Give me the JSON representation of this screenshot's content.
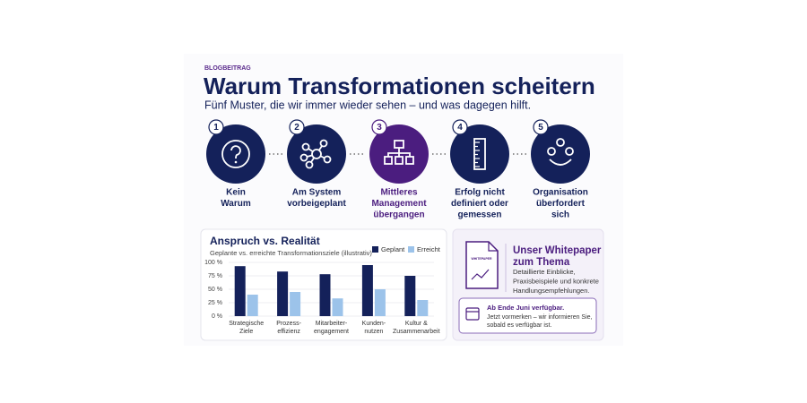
{
  "header": {
    "kicker": "BLOGBEITRAG",
    "title": "Warum Transformationen scheitern",
    "subtitle": "Fünf Muster, die wir immer wieder sehen – und was dagegen hilft."
  },
  "steps": [
    {
      "number": "1",
      "label": [
        "Kein",
        "Warum"
      ]
    },
    {
      "number": "2",
      "label": [
        "Am System",
        "vorbeigeplant"
      ]
    },
    {
      "number": "3",
      "label": [
        "Mittleres",
        "Management",
        "übergangen"
      ]
    },
    {
      "number": "4",
      "label": [
        "Erfolg nicht",
        "definiert oder",
        "gemessen"
      ]
    },
    {
      "number": "5",
      "label": [
        "Organisation",
        "überfordert",
        "sich"
      ]
    }
  ],
  "chart_data": {
    "type": "bar",
    "title": "Anspruch vs. Realität",
    "subtitle": "Geplante vs. erreichte Transformationsziele (illustrativ)",
    "categories": [
      [
        "Strategische",
        "Ziele"
      ],
      [
        "Prozess-",
        "effizienz"
      ],
      [
        "Mitarbeiter-",
        "engagement"
      ],
      [
        "Kunden-",
        "nutzen"
      ],
      [
        "Kultur &",
        "Zusammenarbeit"
      ]
    ],
    "series": [
      {
        "name": "Geplant",
        "color": "#14215a",
        "values": [
          93,
          83,
          78,
          95,
          75
        ]
      },
      {
        "name": "Erreicht",
        "color": "#9cc3ea",
        "values": [
          40,
          45,
          33,
          50,
          30
        ]
      }
    ],
    "ylim": [
      0,
      100
    ],
    "yticks": [
      {
        "value": 0,
        "label": "0 %"
      },
      {
        "value": 25,
        "label": "25 %"
      },
      {
        "value": 50,
        "label": "50 %"
      },
      {
        "value": 75,
        "label": "75 %"
      },
      {
        "value": 100,
        "label": "100 %"
      }
    ],
    "legend": "top-right"
  },
  "whitepaper": {
    "icon_label": "WHITEPAPER",
    "title": [
      "Unser Whitepaper",
      "zum Thema"
    ],
    "text": [
      "Detaillierte Einblicke,",
      "Praxisbeispiele und konkrete",
      "Handlungsempfehlungen."
    ],
    "availability": "Ab Ende Juni verfügbar.",
    "note": [
      "Jetzt vormerken – wir informieren Sie,",
      "sobald es verfügbar ist."
    ]
  }
}
